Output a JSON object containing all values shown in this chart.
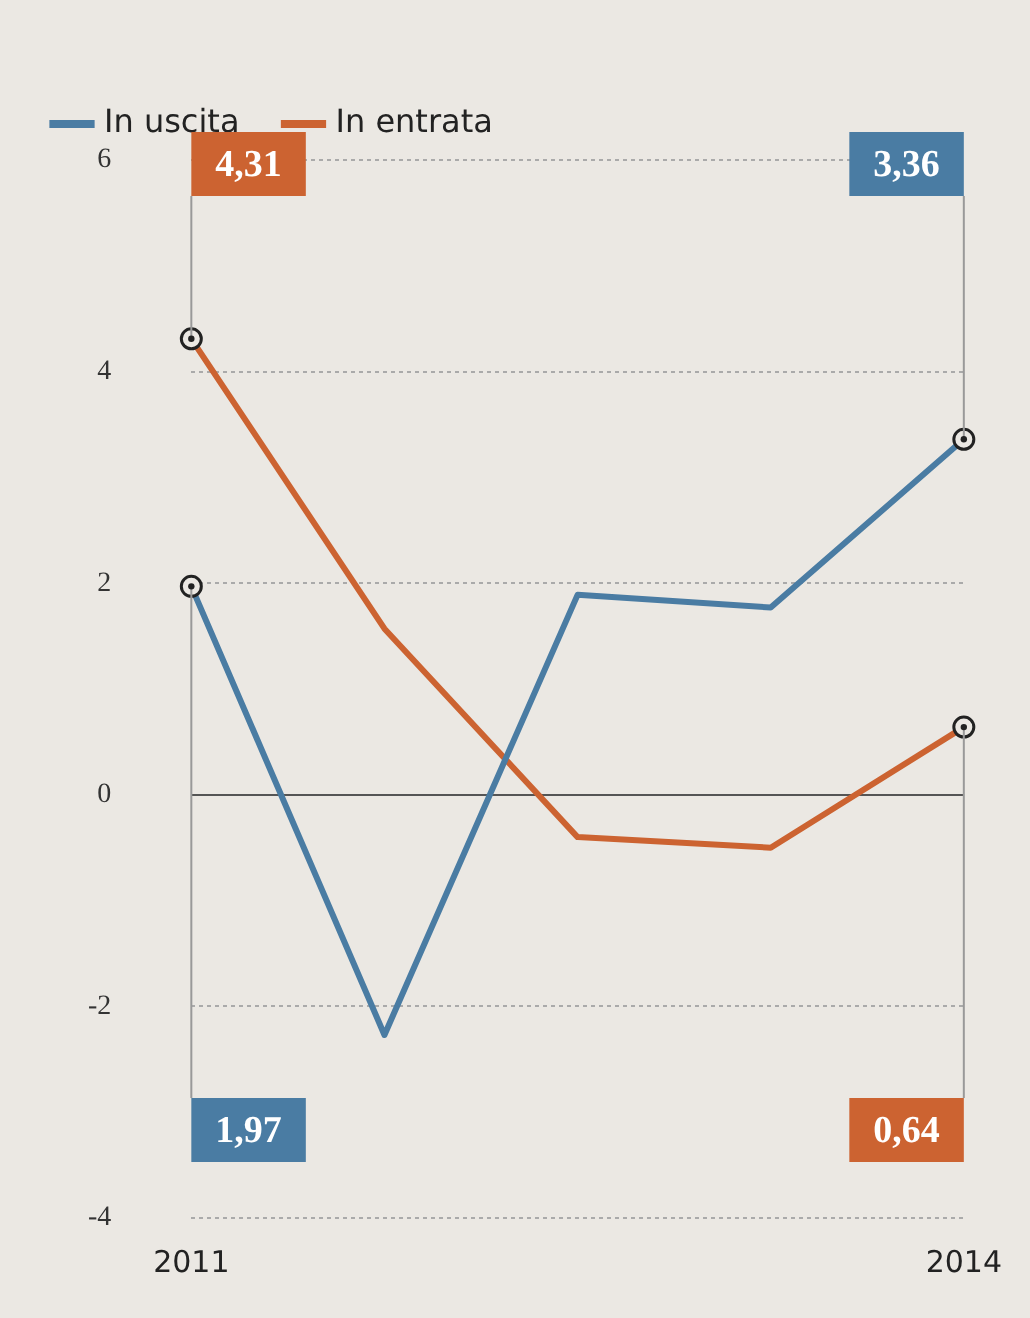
{
  "chart_data": {
    "type": "line",
    "categories": [
      "2011",
      null,
      null,
      null,
      "2014"
    ],
    "series": [
      {
        "name": "In uscita",
        "color": "#4a7ca3",
        "values": [
          1.97,
          -2.27,
          1.89,
          1.77,
          3.36
        ],
        "value_labels": [
          "1,97",
          null,
          null,
          null,
          "3,36"
        ]
      },
      {
        "name": "In entrata",
        "color": "#cc6331",
        "values": [
          4.31,
          1.57,
          -0.4,
          -0.5,
          0.64
        ],
        "value_labels": [
          "4,31",
          null,
          null,
          null,
          "0,64"
        ]
      }
    ],
    "ylim": [
      -4,
      6
    ],
    "yticks": [
      6,
      4,
      2,
      0,
      -2,
      -4
    ],
    "grid": "y",
    "legend": "top left"
  }
}
